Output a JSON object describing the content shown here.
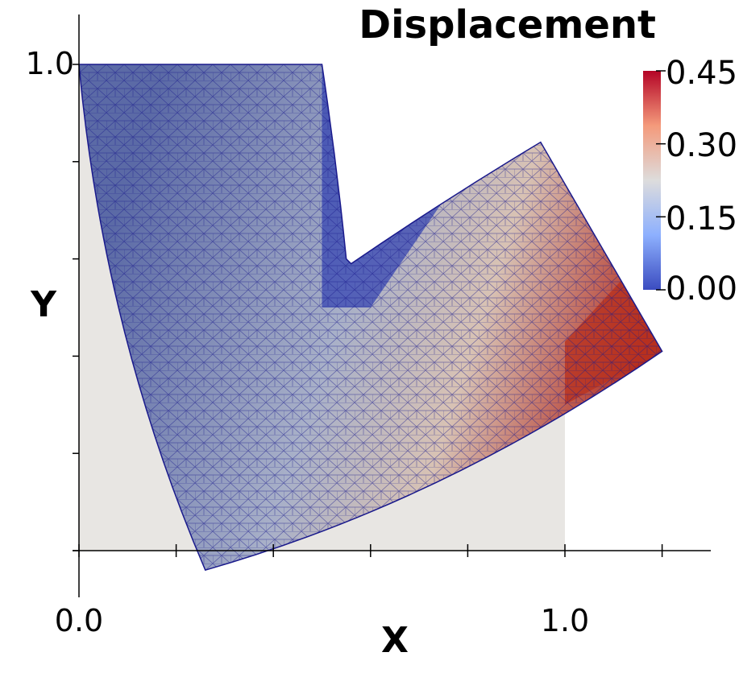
{
  "chart_data": {
    "type": "heatmap",
    "title": "Displacement",
    "xlabel": "X",
    "ylabel": "Y",
    "xlim": [
      0.0,
      1.3
    ],
    "ylim": [
      -0.1,
      1.1
    ],
    "x_tick_labels": [
      "0.0",
      "1.0"
    ],
    "y_tick_labels": [
      "1.0"
    ],
    "x_ticks": [
      0.0,
      0.2,
      0.4,
      0.6,
      0.8,
      1.0,
      1.2
    ],
    "y_ticks": [
      0.0,
      0.2,
      0.4,
      0.6,
      0.8,
      1.0
    ],
    "reference_shape_L": [
      [
        0,
        0
      ],
      [
        1,
        0
      ],
      [
        1,
        0.5
      ],
      [
        0.5,
        0.5
      ],
      [
        0.5,
        1
      ],
      [
        0,
        1
      ]
    ],
    "deformed_shape_L": [
      [
        0.26,
        -0.04
      ],
      [
        1.2,
        0.41
      ],
      [
        0.95,
        0.84
      ],
      [
        0.55,
        0.6
      ],
      [
        0.5,
        1.0
      ],
      [
        0.0,
        1.0
      ]
    ],
    "colorbar": {
      "field": "Displacement",
      "min": 0.0,
      "max": 0.45,
      "tick_labels": [
        "0.45",
        "0.30",
        "0.15",
        "0.00"
      ],
      "colormap": [
        "#3b4cc0",
        "#8db0fe",
        "#dddcdc",
        "#f49a7b",
        "#b40426"
      ]
    },
    "colors": {
      "reference_fill": "#e8e6e3",
      "mesh_line": "#1a1a8c"
    }
  }
}
